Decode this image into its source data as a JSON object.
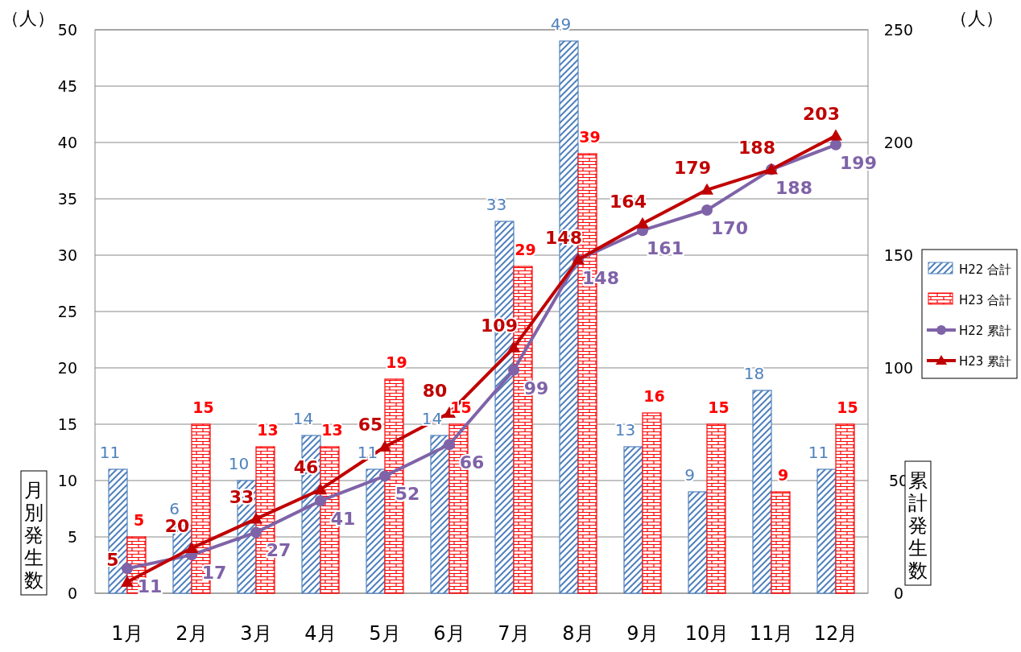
{
  "chart_data": {
    "type": "bar",
    "categories": [
      "1月",
      "2月",
      "3月",
      "4月",
      "5月",
      "6月",
      "7月",
      "8月",
      "9月",
      "10月",
      "11月",
      "12月"
    ],
    "series": [
      {
        "name": "H22 合計",
        "color": "#4f81bd",
        "values": [
          11,
          6,
          10,
          14,
          11,
          14,
          33,
          49,
          13,
          9,
          18,
          11
        ]
      },
      {
        "name": "H23 合計",
        "color": "#ff0000",
        "values": [
          5,
          15,
          13,
          13,
          19,
          15,
          29,
          39,
          16,
          15,
          9,
          15
        ]
      },
      {
        "name": "H22 累計",
        "type": "line",
        "axis": "y2",
        "marker": "circle",
        "color": "#7f63a8",
        "values": [
          11,
          17,
          27,
          41,
          52,
          66,
          99,
          148,
          161,
          170,
          188,
          199
        ]
      },
      {
        "name": "H23 累計",
        "type": "line",
        "axis": "y2",
        "marker": "triangle",
        "color": "#c00000",
        "values": [
          5,
          20,
          33,
          46,
          65,
          80,
          109,
          148,
          164,
          179,
          188,
          203
        ]
      }
    ],
    "ylim": [
      0,
      50
    ],
    "yticks": [
      0,
      5,
      10,
      15,
      20,
      25,
      30,
      35,
      40,
      45,
      50
    ],
    "y2lim": [
      0,
      250
    ],
    "y2ticks": [
      0,
      50,
      100,
      150,
      200,
      250
    ],
    "ylabel": "月別発生数",
    "y2label": "累計発生数",
    "annotations": [
      "（人）",
      "（人）"
    ],
    "grid": "y",
    "legend": "right",
    "data_labels": true
  }
}
